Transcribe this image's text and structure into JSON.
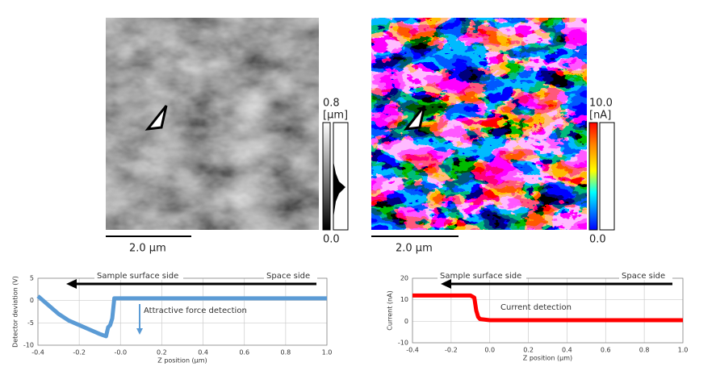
{
  "images": [
    {
      "scale_bar": "2.0 µm",
      "colorbar_max": "0.8",
      "colorbar_unit": "[µm]",
      "colorbar_min": "0.0"
    },
    {
      "scale_bar": "2.0 µm",
      "colorbar_max": "10.0",
      "colorbar_unit": "[nA]",
      "colorbar_min": "0.0"
    }
  ],
  "chart_data": [
    {
      "type": "line",
      "xlabel": "Z position (µm)",
      "ylabel": "Detector deviation (V)",
      "annotations": [
        "Sample surface side",
        "Space side",
        "Attractive force detection"
      ],
      "x": [
        -0.4,
        -0.35,
        -0.3,
        -0.25,
        -0.2,
        -0.15,
        -0.1,
        -0.07,
        -0.06,
        -0.05,
        -0.04,
        -0.03,
        0,
        0.2,
        0.4,
        0.6,
        0.8,
        1.0
      ],
      "series": [
        {
          "color": "#5b9bd5",
          "values": [
            1,
            -1,
            -3,
            -4.5,
            -5.5,
            -6.5,
            -7.5,
            -8,
            -6,
            -5.5,
            -4,
            0.5,
            0.5,
            0.5,
            0.5,
            0.5,
            0.5,
            0.5
          ]
        }
      ],
      "xlim": [
        -0.4,
        1.0
      ],
      "xticks": [
        -0.4,
        -0.2,
        {
          "value": 0,
          "label": "-0.0"
        },
        0.2,
        0.4,
        0.6,
        0.8,
        {
          "value": 1,
          "label": "1.0"
        }
      ],
      "ylim": [
        -10,
        5
      ],
      "yticks": [
        5,
        0,
        -5,
        -10
      ],
      "grid": true
    },
    {
      "type": "line",
      "xlabel": "Z position (µm)",
      "ylabel": "Current (nA)",
      "annotations": [
        "Sample surface side",
        "Space side",
        "Current detection"
      ],
      "x": [
        -0.4,
        -0.1,
        -0.08,
        -0.07,
        -0.06,
        -0.05,
        0,
        0.2,
        0.4,
        0.6,
        0.8,
        1.0
      ],
      "series": [
        {
          "color": "#ff0000",
          "values": [
            12,
            12,
            11,
            5,
            2,
            1,
            0.5,
            0.5,
            0.5,
            0.5,
            0.5,
            0.5
          ]
        }
      ],
      "xlim": [
        -0.4,
        1.0
      ],
      "xticks": [
        -0.4,
        -0.2,
        {
          "value": 0,
          "label": "0.0"
        },
        0.2,
        0.4,
        0.6,
        0.8,
        {
          "value": 1,
          "label": "1.0"
        }
      ],
      "ylim": [
        -10,
        20
      ],
      "yticks": [
        20,
        10,
        0,
        -10
      ],
      "grid": true
    }
  ]
}
